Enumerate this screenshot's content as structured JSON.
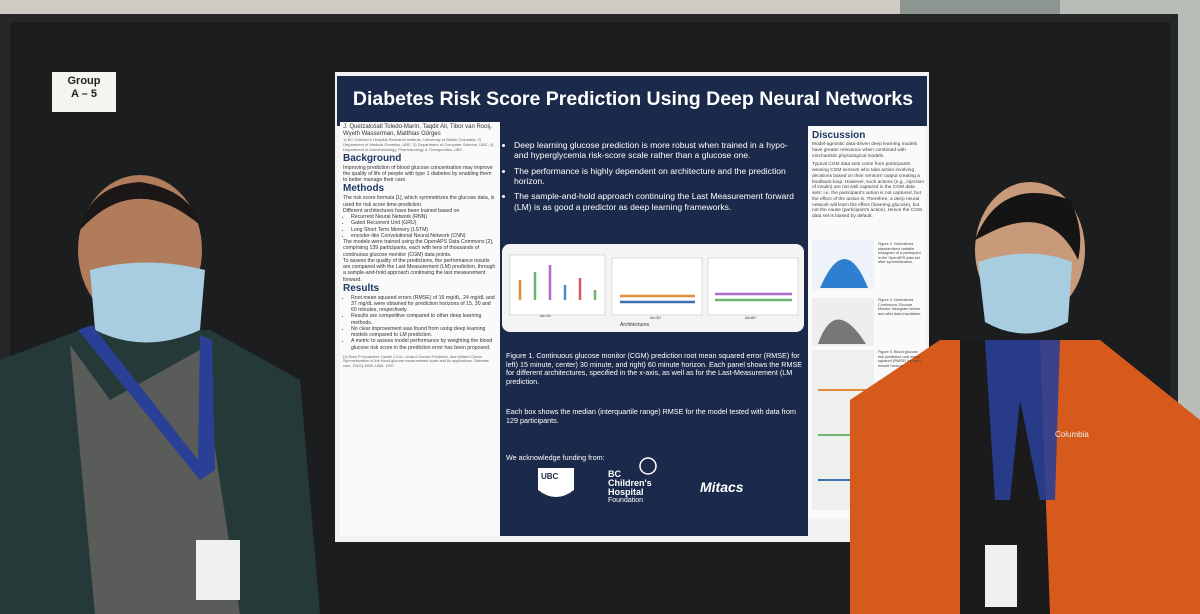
{
  "sign": {
    "line1": "Group",
    "line2": "A – 5"
  },
  "poster": {
    "title": "Diabetes Risk Score Prediction Using Deep Neural Networks",
    "authors": "J. Quetzalcóatl Toledo-Marín, Taqdir Ali, Tibor van Rooij, Wyeth Wasserman, Matthias Görges",
    "affiliations": "1) BC Children's Hospital Research Institute, University of British Columbia; 2) Department of Medical Genetics, UBC; 3) Department of Computer Science, UBC; 4) Department of Anesthesiology, Pharmacology & Therapeutics, UBC",
    "left": {
      "background_heading": "Background",
      "background_text": "Improving prediction of blood glucose concentration may improve the quality of life of people with type 1 diabetes by enabling them to better manage their care.",
      "methods_heading": "Methods",
      "methods_paragraphs": [
        "The risk score formula [1], which symmetrizes the glucose data, is used for risk score time-prediction.",
        "Different architectures have been trained based on"
      ],
      "methods_list": [
        "Recurrent Neural Network (RNN)",
        "Gated Recurrent Unit (GRU)",
        "Long Short Term Memory (LSTM)",
        "encoder-like Convolutional Neural Network (CNN)"
      ],
      "methods_more": [
        "The models were trained using the OpenAPS Data Commons [2], comprising 139 participants, each with tens of thousands of continuous glucose monitor (CGM) data points.",
        "To assess the quality of the predictions, the performance results are compared with the Last Measurement (LM) prediction, through a sample-and-hold approach continuing the last measurement forward."
      ],
      "results_heading": "Results",
      "results_list": [
        "Root mean squared errors (RMSE) of 16 mg/dL, 24 mg/dL and 37 mg/dL were obtained for prediction horizons of 15, 30 and 60 minutes, respectively.",
        "Results are competitive compared to other deep learning methods.",
        "No clear improvement was found from using deep learning models compared to LM prediction.",
        "A metric to assess model performance by weighting the blood glucose risk score in the prediction error has been proposed."
      ],
      "references": "[1] Boris P Kovatchev, Daniel J Cox, Linda A Gonder-Frederick, and William Clarke. Symmetrization of the blood glucose measurement scale and its applications. Diabetes care, 20(11):1655–1658, 1997."
    },
    "center": {
      "bullets": [
        "Deep learning glucose prediction is more robust when trained in a hypo- and hyperglycemia risk-score scale rather than a glucose one.",
        "The performance is highly dependent on architecture and the prediction horizon.",
        "The sample-and-hold approach continuing the Last Measurement forward (LM) is as good a predictor as deep learning frameworks."
      ],
      "panel_labels": [
        "Δt=15",
        "Δt=30",
        "Δt=60"
      ],
      "axis_label": "Architectures",
      "caption": "Figure 1. Continuous glucose monitor (CGM) prediction root mean squared error (RMSE) for left) 15 minute, center) 30 minute, and right) 60 minute horizon. Each panel shows the RMSE for different architectures, specified in the x-axis, as well as for the Last-Measurement (LM prediction.",
      "caption2": "Each box shows the median (interquartile range) RMSE for the model tested with data from 129 participants.",
      "acknowledge": "We acknowledge funding from:",
      "logo_ubc": "UBC",
      "logo_bcch": [
        "BC",
        "Children's",
        "Hospital",
        "Foundation"
      ],
      "logo_mitacs": "Mitacs"
    },
    "right": {
      "heading": "Discussion",
      "paragraphs": [
        "Model-agnostic data-driven deep learning models have greater relevance when combined with mechanistic physiological models.",
        "Typical CGM data sets come from participants wearing CGM sensors who take action involving decisions based on their sensors' output creating a feedback-loop. However, such actions (e.g., injection of insulin) are not well captured in the CGM data sets: i.e. the participant's action is not captured, but the effect of the action is. Therefore, a deep neural network will learn the effect (lowering glucose), but not the cause (participant's action). Hence the CGM data set is biased by default."
      ],
      "figure_notes": [
        "Figure 2. Normalized standardized variable histogram of a participant in the OpenAPS data set after symmetrization.",
        "Figure 3. Normalized Continuous Glucose Monitor histogram before and after data imputation.",
        "Figure 4. Blood glucose risk prediction root mean squared (RMSE) for each minute horizon."
      ]
    }
  },
  "jacket_brand": "Columbia"
}
